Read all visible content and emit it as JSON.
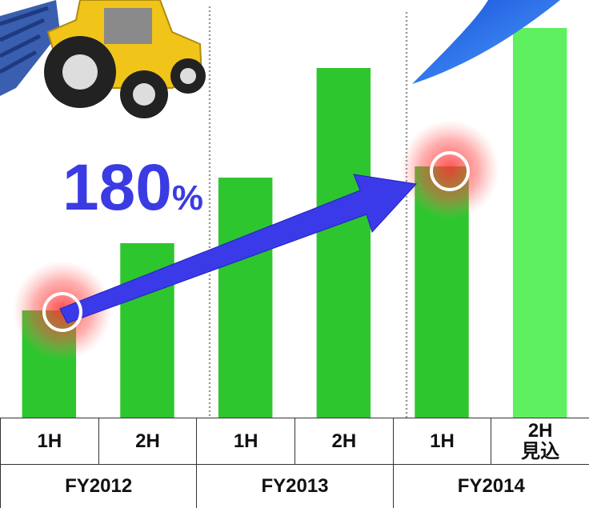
{
  "chart_data": {
    "type": "bar",
    "categories": [
      "1H",
      "2H",
      "1H",
      "2H",
      "1H",
      "2H\n見込"
    ],
    "groups": [
      "FY2012",
      "FY2013",
      "FY2014"
    ],
    "values": [
      134,
      218,
      300,
      437,
      314,
      487
    ],
    "colors": [
      "#2ec62e",
      "#2ec62e",
      "#2ec62e",
      "#2ec62e",
      "#2ec62e",
      "#5ef05e"
    ],
    "ylim": [
      0,
      522
    ],
    "annotation_number": "180",
    "annotation_unit": "%"
  }
}
